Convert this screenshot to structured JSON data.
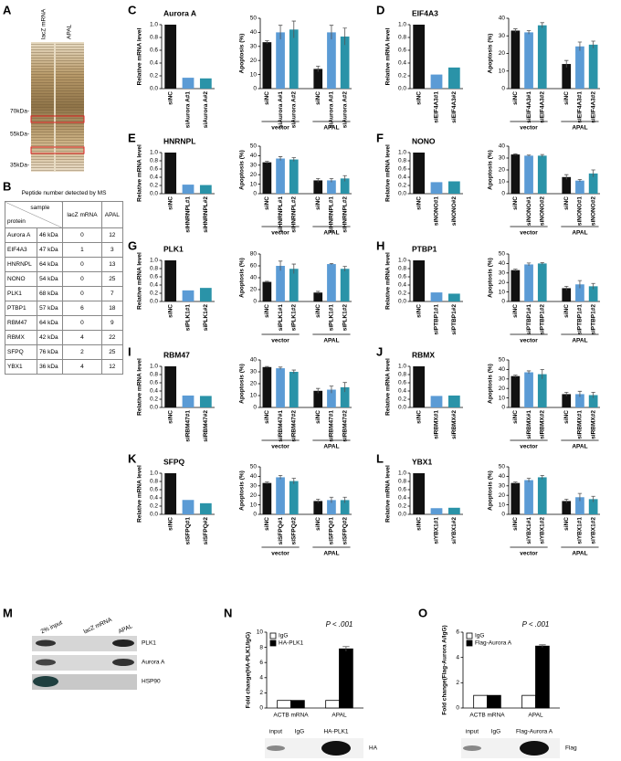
{
  "panel_labels": [
    "A",
    "B",
    "C",
    "D",
    "E",
    "F",
    "G",
    "H",
    "I",
    "J",
    "K",
    "L",
    "M",
    "N",
    "O"
  ],
  "gel": {
    "lanes": [
      "lacZ mRNA",
      "APAL"
    ],
    "markers": [
      "70kDa-",
      "55kDa-",
      "35kDa-"
    ]
  },
  "table": {
    "title": "Peptide number detected by MS",
    "header": [
      "sample",
      "protein",
      "lacZ mRNA",
      "APAL"
    ],
    "rows": [
      [
        "Aurora A",
        "46 kDa",
        0,
        12
      ],
      [
        "EIF4A3",
        "47 kDa",
        1,
        3
      ],
      [
        "HNRNPL",
        "64 kDa",
        0,
        13
      ],
      [
        "NONO",
        "54 kDa",
        0,
        25
      ],
      [
        "PLK1",
        "68 kDa",
        0,
        7
      ],
      [
        "PTBP1",
        "57 kDa",
        6,
        18
      ],
      [
        "RBM47",
        "64 kDa",
        0,
        9
      ],
      [
        "RBMX",
        "42 kDa",
        4,
        22
      ],
      [
        "SFPQ",
        "76 kDa",
        2,
        25
      ],
      [
        "YBX1",
        "36 kDa",
        4,
        12
      ]
    ]
  },
  "blot_m": {
    "lanes": [
      "2% input",
      "lacZ mRNA",
      "APAL"
    ],
    "bands": [
      "PLK1",
      "Aurora A",
      "HSP90"
    ]
  },
  "blot_n": {
    "lanes": [
      "input",
      "IgG",
      "HA-PLK1"
    ],
    "band": "HA"
  },
  "blot_o": {
    "lanes": [
      "input",
      "IgG",
      "Flag-Aurora A"
    ],
    "band": "Flag"
  },
  "chart_data": [
    {
      "type": "bar",
      "title": "Aurora A",
      "ylabel": "Relative mRNA level",
      "categories": [
        "siNC",
        "siAurora A#1",
        "siAurora A#2"
      ],
      "values": [
        1,
        0.17,
        0.16
      ],
      "colors": [
        "#111111",
        "#5b9bd5",
        "#2a93a8"
      ],
      "ylim": [
        0,
        1
      ],
      "yticks": [
        {
          "value": 0,
          "label": "0.0"
        },
        {
          "value": 0.2,
          "label": "0.2"
        },
        {
          "value": 0.4,
          "label": "0.4"
        },
        {
          "value": 0.6,
          "label": "0.6"
        },
        {
          "value": 0.8,
          "label": "0.8"
        },
        {
          "value": 1,
          "label": "1.0"
        }
      ]
    },
    {
      "type": "bar",
      "ylabel": "Apoptosis (%)",
      "categories": [
        "siNC",
        "siAurora A#1",
        "siAurora A#2",
        "siNC",
        "siAurora A#1",
        "siAurora A#2"
      ],
      "values": [
        33,
        40,
        42,
        14,
        40,
        37
      ],
      "errors": [
        1,
        5,
        6,
        2,
        5,
        6
      ],
      "groups": [
        "vector",
        "APAL"
      ],
      "colors": [
        "#111111",
        "#5b9bd5",
        "#2a93a8"
      ],
      "ylim": [
        0,
        50
      ],
      "yticks": [
        0,
        10,
        20,
        30,
        40,
        50
      ]
    },
    {
      "type": "bar",
      "title": "EIF4A3",
      "ylabel": "Relative mRNA level",
      "categories": [
        "siNC",
        "siEIF4A3#1",
        "siEIF4A3#2"
      ],
      "values": [
        1,
        0.22,
        0.33
      ],
      "colors": [
        "#111111",
        "#5b9bd5",
        "#2a93a8"
      ],
      "ylim": [
        0,
        1
      ],
      "yticks": [
        {
          "value": 0,
          "label": "0.0"
        },
        {
          "value": 0.2,
          "label": "0.2"
        },
        {
          "value": 0.4,
          "label": "0.4"
        },
        {
          "value": 0.6,
          "label": "0.6"
        },
        {
          "value": 0.8,
          "label": "0.8"
        },
        {
          "value": 1,
          "label": "1.0"
        }
      ]
    },
    {
      "type": "bar",
      "ylabel": "Apoptosis (%)",
      "categories": [
        "siNC",
        "siEIF4A3#1",
        "siEIF4A3#2",
        "siNC",
        "siEIF4A3#1",
        "siEIF4A3#2"
      ],
      "values": [
        33,
        32,
        36,
        14,
        24,
        25
      ],
      "errors": [
        1,
        1,
        1.5,
        2,
        2.5,
        2
      ],
      "groups": [
        "vector",
        "APAL"
      ],
      "colors": [
        "#111111",
        "#5b9bd5",
        "#2a93a8"
      ],
      "ylim": [
        0,
        40
      ],
      "yticks": [
        0,
        10,
        20,
        30,
        40
      ]
    },
    {
      "type": "bar",
      "title": "HNRNPL",
      "ylabel": "Relative mRNA level",
      "categories": [
        "siNC",
        "siHNRNPL#1",
        "siHNRNPL#2"
      ],
      "values": [
        1,
        0.22,
        0.21
      ],
      "colors": [
        "#111111",
        "#5b9bd5",
        "#2a93a8"
      ],
      "ylim": [
        0,
        1
      ],
      "yticks": [
        {
          "value": 0,
          "label": "0.0"
        },
        {
          "value": 0.2,
          "label": "0.2"
        },
        {
          "value": 0.4,
          "label": "0.4"
        },
        {
          "value": 0.6,
          "label": "0.6"
        },
        {
          "value": 0.8,
          "label": "0.8"
        },
        {
          "value": 1,
          "label": "1.0"
        }
      ]
    },
    {
      "type": "bar",
      "ylabel": "Apoptosis (%)",
      "categories": [
        "siNC",
        "siHNRNPL#1",
        "siHNRNPL#2",
        "siNC",
        "siHNRNPL#1",
        "siHNRNPL#2"
      ],
      "values": [
        33,
        37,
        36,
        14,
        14,
        16
      ],
      "errors": [
        1,
        2,
        2,
        2,
        2,
        3
      ],
      "groups": [
        "vector",
        "APAL"
      ],
      "colors": [
        "#111111",
        "#5b9bd5",
        "#2a93a8"
      ],
      "ylim": [
        0,
        50
      ],
      "yticks": [
        0,
        10,
        20,
        30,
        40,
        50
      ]
    },
    {
      "type": "bar",
      "title": "NONO",
      "ylabel": "Relative mRNA level",
      "categories": [
        "siNC",
        "siNONO#1",
        "siNONO#2"
      ],
      "values": [
        1,
        0.28,
        0.3
      ],
      "colors": [
        "#111111",
        "#5b9bd5",
        "#2a93a8"
      ],
      "ylim": [
        0,
        1
      ],
      "yticks": [
        {
          "value": 0,
          "label": "0.0"
        },
        {
          "value": 0.2,
          "label": "0.2"
        },
        {
          "value": 0.4,
          "label": "0.4"
        },
        {
          "value": 0.6,
          "label": "0.6"
        },
        {
          "value": 0.8,
          "label": "0.8"
        },
        {
          "value": 1,
          "label": "1.0"
        }
      ]
    },
    {
      "type": "bar",
      "ylabel": "Apoptosis (%)",
      "categories": [
        "siNC",
        "siNONO#1",
        "siNONO#2",
        "siNC",
        "siNONO#1",
        "siNONO#2"
      ],
      "values": [
        33,
        32,
        32,
        14,
        11,
        17
      ],
      "errors": [
        0.5,
        0.5,
        1,
        2,
        1,
        3
      ],
      "groups": [
        "vector",
        "APAL"
      ],
      "colors": [
        "#111111",
        "#5b9bd5",
        "#2a93a8"
      ],
      "ylim": [
        0,
        40
      ],
      "yticks": [
        0,
        10,
        20,
        30,
        40
      ]
    },
    {
      "type": "bar",
      "title": "PLK1",
      "ylabel": "Relative mRNA level",
      "categories": [
        "siNC",
        "siPLK1#1",
        "siPLK1#2"
      ],
      "values": [
        1,
        0.27,
        0.33
      ],
      "colors": [
        "#111111",
        "#5b9bd5",
        "#2a93a8"
      ],
      "ylim": [
        0,
        1
      ],
      "yticks": [
        {
          "value": 0,
          "label": "0.0"
        },
        {
          "value": 0.2,
          "label": "0.2"
        },
        {
          "value": 0.4,
          "label": "0.4"
        },
        {
          "value": 0.6,
          "label": "0.6"
        },
        {
          "value": 0.8,
          "label": "0.8"
        },
        {
          "value": 1,
          "label": "1.0"
        }
      ]
    },
    {
      "type": "bar",
      "ylabel": "Apoptosis (%)",
      "categories": [
        "siNC",
        "siPLK1#1",
        "siPLK1#2",
        "siNC",
        "siPLK1#1",
        "siPLK1#2"
      ],
      "values": [
        33,
        60,
        55,
        15,
        63,
        55
      ],
      "errors": [
        1,
        8,
        8,
        2,
        1,
        4
      ],
      "groups": [
        "vector",
        "APAL"
      ],
      "colors": [
        "#111111",
        "#5b9bd5",
        "#2a93a8"
      ],
      "ylim": [
        0,
        80
      ],
      "yticks": [
        0,
        20,
        40,
        60,
        80
      ]
    },
    {
      "type": "bar",
      "title": "PTBP1",
      "ylabel": "Relative mRNA level",
      "categories": [
        "siNC",
        "siPTBP1#1",
        "siPTBP1#2"
      ],
      "values": [
        1,
        0.22,
        0.19
      ],
      "colors": [
        "#111111",
        "#5b9bd5",
        "#2a93a8"
      ],
      "ylim": [
        0,
        1
      ],
      "yticks": [
        {
          "value": 0,
          "label": "0.0"
        },
        {
          "value": 0.2,
          "label": "0.2"
        },
        {
          "value": 0.4,
          "label": "0.4"
        },
        {
          "value": 0.6,
          "label": "0.6"
        },
        {
          "value": 0.8,
          "label": "0.8"
        },
        {
          "value": 1,
          "label": "1.0"
        }
      ]
    },
    {
      "type": "bar",
      "ylabel": "Apoptosis (%)",
      "categories": [
        "siNC",
        "siPTBP1#1",
        "siPTBP1#2",
        "siNC",
        "siPTBP1#1",
        "siPTBP1#2"
      ],
      "values": [
        33,
        39,
        40,
        14,
        18,
        16
      ],
      "errors": [
        1,
        1.5,
        1,
        2,
        4,
        3
      ],
      "groups": [
        "vector",
        "APAL"
      ],
      "colors": [
        "#111111",
        "#5b9bd5",
        "#2a93a8"
      ],
      "ylim": [
        0,
        50
      ],
      "yticks": [
        0,
        10,
        20,
        30,
        40,
        50
      ]
    },
    {
      "type": "bar",
      "title": "RBM47",
      "ylabel": "Relative mRNA level",
      "categories": [
        "siNC",
        "siRBM47#1",
        "siRBM47#2"
      ],
      "values": [
        1,
        0.29,
        0.28
      ],
      "colors": [
        "#111111",
        "#5b9bd5",
        "#2a93a8"
      ],
      "ylim": [
        0,
        1
      ],
      "yticks": [
        {
          "value": 0,
          "label": "0.0"
        },
        {
          "value": 0.2,
          "label": "0.2"
        },
        {
          "value": 0.4,
          "label": "0.4"
        },
        {
          "value": 0.6,
          "label": "0.6"
        },
        {
          "value": 0.8,
          "label": "0.8"
        },
        {
          "value": 1,
          "label": "1.0"
        }
      ]
    },
    {
      "type": "bar",
      "ylabel": "Apoptosis (%)",
      "categories": [
        "siNC",
        "siRBM47#1",
        "siRBM47#2",
        "siNC",
        "siRBM47#1",
        "siRBM47#2"
      ],
      "values": [
        34,
        33,
        30,
        14,
        15,
        17
      ],
      "errors": [
        0.5,
        1,
        1.5,
        2,
        3,
        4
      ],
      "groups": [
        "vector",
        "APAL"
      ],
      "colors": [
        "#111111",
        "#5b9bd5",
        "#2a93a8"
      ],
      "ylim": [
        0,
        40
      ],
      "yticks": [
        0,
        10,
        20,
        30,
        40
      ]
    },
    {
      "type": "bar",
      "title": "RBMX",
      "ylabel": "Relative mRNA level",
      "categories": [
        "siNC",
        "siRBMX#1",
        "siRBMX#2"
      ],
      "values": [
        1,
        0.28,
        0.29
      ],
      "colors": [
        "#111111",
        "#5b9bd5",
        "#2a93a8"
      ],
      "ylim": [
        0,
        1
      ],
      "yticks": [
        {
          "value": 0,
          "label": "0.0"
        },
        {
          "value": 0.2,
          "label": "0.2"
        },
        {
          "value": 0.4,
          "label": "0.4"
        },
        {
          "value": 0.6,
          "label": "0.6"
        },
        {
          "value": 0.8,
          "label": "0.8"
        },
        {
          "value": 1,
          "label": "1.0"
        }
      ]
    },
    {
      "type": "bar",
      "ylabel": "Apoptosis (%)",
      "categories": [
        "siNC",
        "siRBMX#1",
        "siRBMX#2",
        "siNC",
        "siRBMX#1",
        "siRBMX#2"
      ],
      "values": [
        33,
        37,
        35,
        14,
        14,
        13
      ],
      "errors": [
        1,
        1.5,
        5,
        2,
        3,
        3
      ],
      "groups": [
        "vector",
        "APAL"
      ],
      "colors": [
        "#111111",
        "#5b9bd5",
        "#2a93a8"
      ],
      "ylim": [
        0,
        50
      ],
      "yticks": [
        0,
        10,
        20,
        30,
        40,
        50
      ]
    },
    {
      "type": "bar",
      "title": "SFPQ",
      "ylabel": "Relative mRNA level",
      "categories": [
        "siNC",
        "siSFPQ#1",
        "siSFPQ#2"
      ],
      "values": [
        1,
        0.35,
        0.27
      ],
      "colors": [
        "#111111",
        "#5b9bd5",
        "#2a93a8"
      ],
      "ylim": [
        0,
        1
      ],
      "yticks": [
        {
          "value": 0,
          "label": "0.0"
        },
        {
          "value": 0.2,
          "label": "0.2"
        },
        {
          "value": 0.4,
          "label": "0.4"
        },
        {
          "value": 0.6,
          "label": "0.6"
        },
        {
          "value": 0.8,
          "label": "0.8"
        },
        {
          "value": 1,
          "label": "1.0"
        }
      ]
    },
    {
      "type": "bar",
      "ylabel": "Apoptosis (%)",
      "categories": [
        "siNC",
        "siSFPQ#1",
        "siSFPQ#2",
        "siNC",
        "siSFPQ#1",
        "siSFPQ#2"
      ],
      "values": [
        33,
        39,
        35,
        14,
        15,
        15
      ],
      "errors": [
        1,
        2,
        3,
        2,
        3,
        3
      ],
      "groups": [
        "vector",
        "APAL"
      ],
      "colors": [
        "#111111",
        "#5b9bd5",
        "#2a93a8"
      ],
      "ylim": [
        0,
        50
      ],
      "yticks": [
        0,
        10,
        20,
        30,
        40,
        50
      ]
    },
    {
      "type": "bar",
      "title": "YBX1",
      "ylabel": "Relative mRNA level",
      "categories": [
        "siNC",
        "siYBX1#1",
        "siYBX1#2"
      ],
      "values": [
        1,
        0.15,
        0.16
      ],
      "colors": [
        "#111111",
        "#5b9bd5",
        "#2a93a8"
      ],
      "ylim": [
        0,
        1
      ],
      "yticks": [
        {
          "value": 0,
          "label": "0.0"
        },
        {
          "value": 0.2,
          "label": "0.2"
        },
        {
          "value": 0.4,
          "label": "0.4"
        },
        {
          "value": 0.6,
          "label": "0.6"
        },
        {
          "value": 0.8,
          "label": "0.8"
        },
        {
          "value": 1,
          "label": "1.0"
        }
      ]
    },
    {
      "type": "bar",
      "ylabel": "Apoptosis (%)",
      "categories": [
        "siNC",
        "siYBX1#1",
        "siYBX1#2",
        "siNC",
        "siYBX1#1",
        "siYBX1#2"
      ],
      "values": [
        33,
        36,
        39,
        14,
        18,
        16
      ],
      "errors": [
        1,
        2,
        2,
        2,
        4,
        3
      ],
      "groups": [
        "vector",
        "APAL"
      ],
      "colors": [
        "#111111",
        "#5b9bd5",
        "#2a93a8"
      ],
      "ylim": [
        0,
        50
      ],
      "yticks": [
        0,
        10,
        20,
        30,
        40,
        50
      ]
    },
    {
      "type": "bar",
      "ylabel": "Fold change(HA-PLK1/IgG)",
      "categories": [
        "ACTB mRNA",
        "APAL"
      ],
      "series": [
        {
          "name": "IgG",
          "color": "#ffffff",
          "values": [
            1,
            1
          ]
        },
        {
          "name": "HA-PLK1",
          "color": "#000000",
          "values": [
            1,
            7.8
          ],
          "errors": [
            0,
            0.3
          ]
        }
      ],
      "annotation": "P < .001",
      "ylim": [
        0,
        10
      ],
      "yticks": [
        0,
        2,
        4,
        6,
        8,
        10
      ]
    },
    {
      "type": "bar",
      "ylabel": "Fold change(Flag-Aurora A/IgG)",
      "categories": [
        "ACTB mRNA",
        "APAL"
      ],
      "series": [
        {
          "name": "IgG",
          "color": "#ffffff",
          "values": [
            1,
            1
          ]
        },
        {
          "name": "Flag-Aurora A",
          "color": "#000000",
          "values": [
            1,
            4.9
          ],
          "errors": [
            0,
            0.1
          ]
        }
      ],
      "annotation": "P < .001",
      "ylim": [
        0,
        6
      ],
      "yticks": [
        0,
        2,
        4,
        6
      ]
    }
  ]
}
